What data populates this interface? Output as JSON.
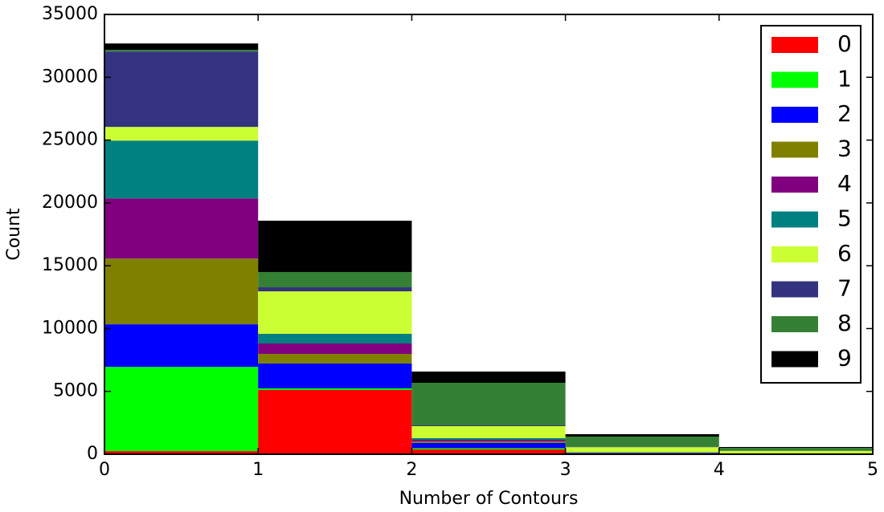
{
  "chart_data": {
    "type": "stacked_histogram",
    "xlabel": "Number of Contours",
    "ylabel": "Count",
    "bins": [
      0,
      1,
      2,
      3,
      4,
      5
    ],
    "xlim": [
      0,
      5
    ],
    "xticks": [
      0,
      1,
      2,
      3,
      4,
      5
    ],
    "ylim": [
      0,
      35000
    ],
    "yticks": [
      0,
      5000,
      10000,
      15000,
      20000,
      25000,
      30000,
      35000
    ],
    "legend": "upper right",
    "series": [
      {
        "name": "0",
        "color": "#ff0000",
        "values": [
          250,
          5110,
          380,
          30,
          10
        ]
      },
      {
        "name": "1",
        "color": "#00ff00",
        "values": [
          6700,
          130,
          100,
          20,
          10
        ]
      },
      {
        "name": "2",
        "color": "#0000ff",
        "values": [
          3390,
          1980,
          420,
          40,
          10
        ]
      },
      {
        "name": "3",
        "color": "#808000",
        "values": [
          5230,
          765,
          120,
          20,
          10
        ]
      },
      {
        "name": "4",
        "color": "#800080",
        "values": [
          4790,
          830,
          130,
          20,
          10
        ]
      },
      {
        "name": "5",
        "color": "#008080",
        "values": [
          4600,
          765,
          130,
          30,
          10
        ]
      },
      {
        "name": "6",
        "color": "#ccff33",
        "values": [
          1090,
          3385,
          955,
          400,
          200
        ]
      },
      {
        "name": "7",
        "color": "#333380",
        "values": [
          6000,
          320,
          65,
          20,
          10
        ]
      },
      {
        "name": "8",
        "color": "#358035",
        "values": [
          130,
          1215,
          3385,
          825,
          240
        ]
      },
      {
        "name": "9",
        "color": "#000000",
        "values": [
          510,
          4085,
          895,
          190,
          65
        ]
      }
    ]
  }
}
